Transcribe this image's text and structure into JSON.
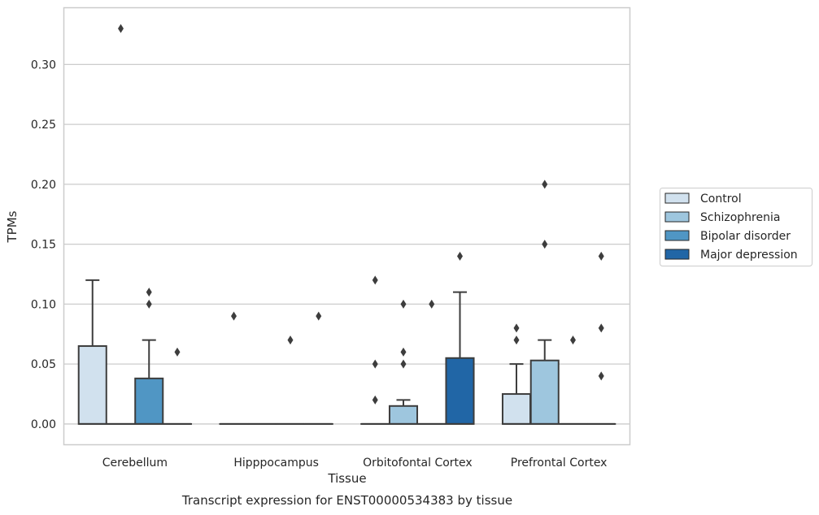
{
  "chart_data": {
    "type": "box",
    "title": "",
    "caption": "Transcript expression for ENST00000534383 by tissue",
    "xlabel": "Tissue",
    "ylabel": "TPMs",
    "ylim": [
      -0.017,
      0.347
    ],
    "yticks": [
      "0.00",
      "0.05",
      "0.10",
      "0.15",
      "0.20",
      "0.25",
      "0.30"
    ],
    "ytick_values": [
      0,
      0.05,
      0.1,
      0.15,
      0.2,
      0.25,
      0.3
    ],
    "grid": true,
    "legend_position": "right",
    "categories": [
      "Cerebellum",
      "Hipppocampus",
      "Orbitofontal Cortex",
      "Prefrontal Cortex"
    ],
    "series": [
      {
        "name": "Control",
        "color": "#d1e1ee",
        "boxes": [
          {
            "q1": 0,
            "median": 0,
            "q3": 0.065,
            "whisker_low": 0,
            "whisker_high": 0.12,
            "outliers": []
          },
          {
            "q1": 0,
            "median": 0,
            "q3": 0,
            "whisker_low": 0,
            "whisker_high": 0,
            "outliers": [
              0.09
            ]
          },
          {
            "q1": 0,
            "median": 0,
            "q3": 0,
            "whisker_low": 0,
            "whisker_high": 0,
            "outliers": [
              0.12,
              0.05,
              0.02
            ]
          },
          {
            "q1": 0,
            "median": 0,
            "q3": 0.025,
            "whisker_low": 0,
            "whisker_high": 0.05,
            "outliers": [
              0.08,
              0.07
            ]
          }
        ]
      },
      {
        "name": "Schizophrenia",
        "color": "#9ec6de",
        "boxes": [
          {
            "q1": 0,
            "median": 0,
            "q3": 0,
            "whisker_low": 0,
            "whisker_high": 0,
            "outliers": [
              0.33
            ]
          },
          {
            "q1": 0,
            "median": 0,
            "q3": 0,
            "whisker_low": 0,
            "whisker_high": 0,
            "outliers": []
          },
          {
            "q1": 0,
            "median": 0,
            "q3": 0.015,
            "whisker_low": 0,
            "whisker_high": 0.02,
            "outliers": [
              0.1,
              0.06,
              0.05
            ]
          },
          {
            "q1": 0,
            "median": 0,
            "q3": 0.053,
            "whisker_low": 0,
            "whisker_high": 0.07,
            "outliers": [
              0.2,
              0.15
            ]
          }
        ]
      },
      {
        "name": "Bipolar disorder",
        "color": "#5096c4",
        "boxes": [
          {
            "q1": 0,
            "median": 0,
            "q3": 0.038,
            "whisker_low": 0,
            "whisker_high": 0.07,
            "outliers": [
              0.11,
              0.1
            ]
          },
          {
            "q1": 0,
            "median": 0,
            "q3": 0,
            "whisker_low": 0,
            "whisker_high": 0,
            "outliers": [
              0.07
            ]
          },
          {
            "q1": 0,
            "median": 0,
            "q3": 0,
            "whisker_low": 0,
            "whisker_high": 0,
            "outliers": [
              0.1
            ]
          },
          {
            "q1": 0,
            "median": 0,
            "q3": 0,
            "whisker_low": 0,
            "whisker_high": 0,
            "outliers": [
              0.07
            ]
          }
        ]
      },
      {
        "name": "Major depression",
        "color": "#2166a6",
        "boxes": [
          {
            "q1": 0,
            "median": 0,
            "q3": 0,
            "whisker_low": 0,
            "whisker_high": 0,
            "outliers": [
              0.06
            ]
          },
          {
            "q1": 0,
            "median": 0,
            "q3": 0,
            "whisker_low": 0,
            "whisker_high": 0,
            "outliers": [
              0.09
            ]
          },
          {
            "q1": 0,
            "median": 0,
            "q3": 0.055,
            "whisker_low": 0,
            "whisker_high": 0.11,
            "outliers": [
              0.14
            ]
          },
          {
            "q1": 0,
            "median": 0,
            "q3": 0,
            "whisker_low": 0,
            "whisker_high": 0,
            "outliers": [
              0.14,
              0.08,
              0.04
            ]
          }
        ]
      }
    ]
  }
}
